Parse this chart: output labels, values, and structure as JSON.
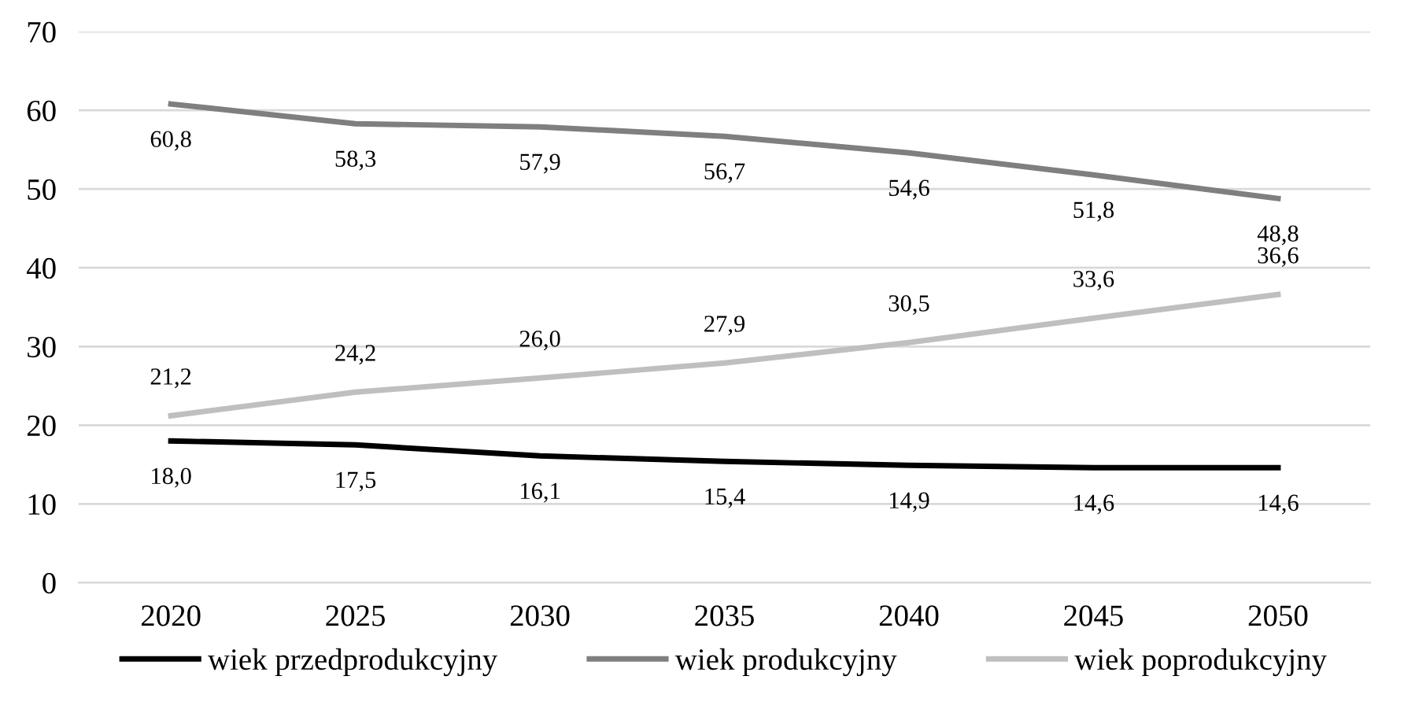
{
  "chart_data": {
    "type": "line",
    "categories": [
      "2020",
      "2025",
      "2030",
      "2035",
      "2040",
      "2045",
      "2050"
    ],
    "series": [
      {
        "name": "wiek przedprodukcyjny",
        "color": "#000000",
        "values": [
          18.0,
          17.5,
          16.1,
          15.4,
          14.9,
          14.6,
          14.6
        ],
        "value_labels": [
          "18,0",
          "17,5",
          "16,1",
          "15,4",
          "14,9",
          "14,6",
          "14,6"
        ]
      },
      {
        "name": "wiek produkcyjny",
        "color": "#7f7f7f",
        "values": [
          60.8,
          58.3,
          57.9,
          56.7,
          54.6,
          51.8,
          48.8
        ],
        "value_labels": [
          "60,8",
          "58,3",
          "57,9",
          "56,7",
          "54,6",
          "51,8",
          "48,8"
        ]
      },
      {
        "name": "wiek poprodukcyjny",
        "color": "#bfbfbf",
        "values": [
          21.2,
          24.2,
          26.0,
          27.9,
          30.5,
          33.6,
          36.6
        ],
        "value_labels": [
          "21,2",
          "24,2",
          "26,0",
          "27,9",
          "30,5",
          "33,6",
          "36,6"
        ]
      }
    ],
    "ylim": [
      0,
      70
    ],
    "yticks": [
      0,
      10,
      20,
      30,
      40,
      50,
      60,
      70
    ],
    "grid": "y",
    "legend": "bottom",
    "marker": "none",
    "line_style": "solid"
  }
}
